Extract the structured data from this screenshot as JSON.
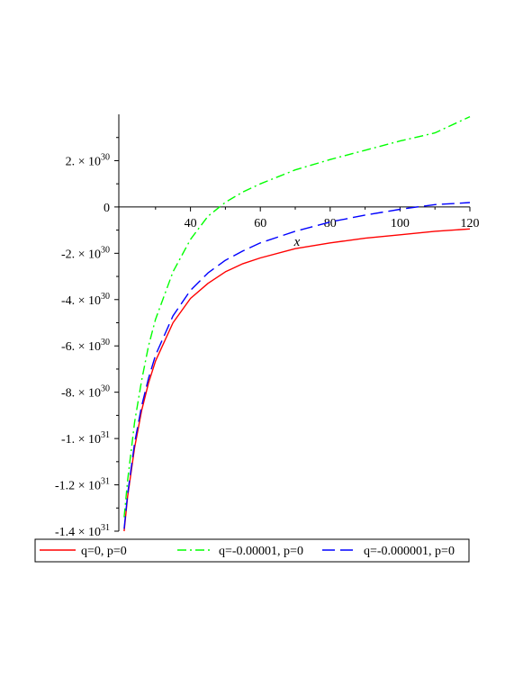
{
  "chart_data": {
    "type": "line",
    "title": "",
    "xlabel": "x",
    "ylabel": "",
    "xlim": [
      20,
      120
    ],
    "ylim": [
      -1.4e+31,
      4e+30
    ],
    "x_ticks": [
      {
        "value": 40,
        "label": "40"
      },
      {
        "value": 60,
        "label": "60"
      },
      {
        "value": 80,
        "label": "80"
      },
      {
        "value": 100,
        "label": "100"
      },
      {
        "value": 120,
        "label": "120"
      }
    ],
    "y_ticks": [
      {
        "value": 2e+30,
        "mantissa": "2. × 10",
        "exp": "30"
      },
      {
        "value": 0,
        "mantissa": "0",
        "exp": ""
      },
      {
        "value": -2e+30,
        "mantissa": "-2. × 10",
        "exp": "30"
      },
      {
        "value": -4e+30,
        "mantissa": "-4. × 10",
        "exp": "30"
      },
      {
        "value": -6e+30,
        "mantissa": "-6. × 10",
        "exp": "30"
      },
      {
        "value": -8e+30,
        "mantissa": "-8. × 10",
        "exp": "30"
      },
      {
        "value": -1e+31,
        "mantissa": "-1. × 10",
        "exp": "31"
      },
      {
        "value": -1.2e+31,
        "mantissa": "-1.2 × 10",
        "exp": "31"
      },
      {
        "value": -1.4e+31,
        "mantissa": "-1.4 × 10",
        "exp": "31"
      }
    ],
    "grid": false,
    "legend_position": "bottom",
    "series": [
      {
        "name": "q=0, p=0",
        "color": "#ff0000",
        "dash": "solid",
        "x": [
          21,
          22,
          24,
          26,
          28,
          30,
          35,
          40,
          45,
          50,
          55,
          60,
          70,
          80,
          90,
          100,
          110,
          120
        ],
        "y": [
          -1.4e+31,
          -1.25e+31,
          -1.04e+31,
          -8.8e+30,
          -7.6e+30,
          -6.65e+30,
          -5e+30,
          -3.95e+30,
          -3.3e+30,
          -2.8e+30,
          -2.45e+30,
          -2.2e+30,
          -1.8e+30,
          -1.55e+30,
          -1.35e+30,
          -1.2e+30,
          -1.05e+30,
          -9.5e+29
        ]
      },
      {
        "name": "q=-0.00001, p=0",
        "color": "#00ff00",
        "dash": "dashdot",
        "x": [
          21,
          22,
          24,
          26,
          28,
          30,
          35,
          40,
          45,
          50,
          55,
          60,
          70,
          80,
          90,
          100,
          110,
          120
        ],
        "y": [
          -1.34e+31,
          -1.18e+31,
          -9.3e+30,
          -7.5e+30,
          -6e+30,
          -4.85e+30,
          -2.8e+30,
          -1.4e+30,
          -4e+29,
          2e+29,
          6.5e+29,
          1e+30,
          1.6e+30,
          2.05e+30,
          2.45e+30,
          2.85e+30,
          3.2e+30,
          3.9e+30
        ]
      },
      {
        "name": "q=-0.000001, p=0",
        "color": "#0000ff",
        "dash": "dash",
        "x": [
          21,
          22,
          24,
          26,
          28,
          30,
          35,
          40,
          45,
          50,
          55,
          60,
          70,
          80,
          90,
          100,
          110,
          120
        ],
        "y": [
          -1.39e+31,
          -1.24e+31,
          -1.02e+31,
          -8.6e+30,
          -7.4e+30,
          -6.4e+30,
          -4.7e+30,
          -3.6e+30,
          -2.85e+30,
          -2.3e+30,
          -1.9e+30,
          -1.55e+30,
          -1.05e+30,
          -6.5e+29,
          -3.5e+29,
          -1e+29,
          1e+29,
          1.9e+29
        ]
      }
    ]
  }
}
